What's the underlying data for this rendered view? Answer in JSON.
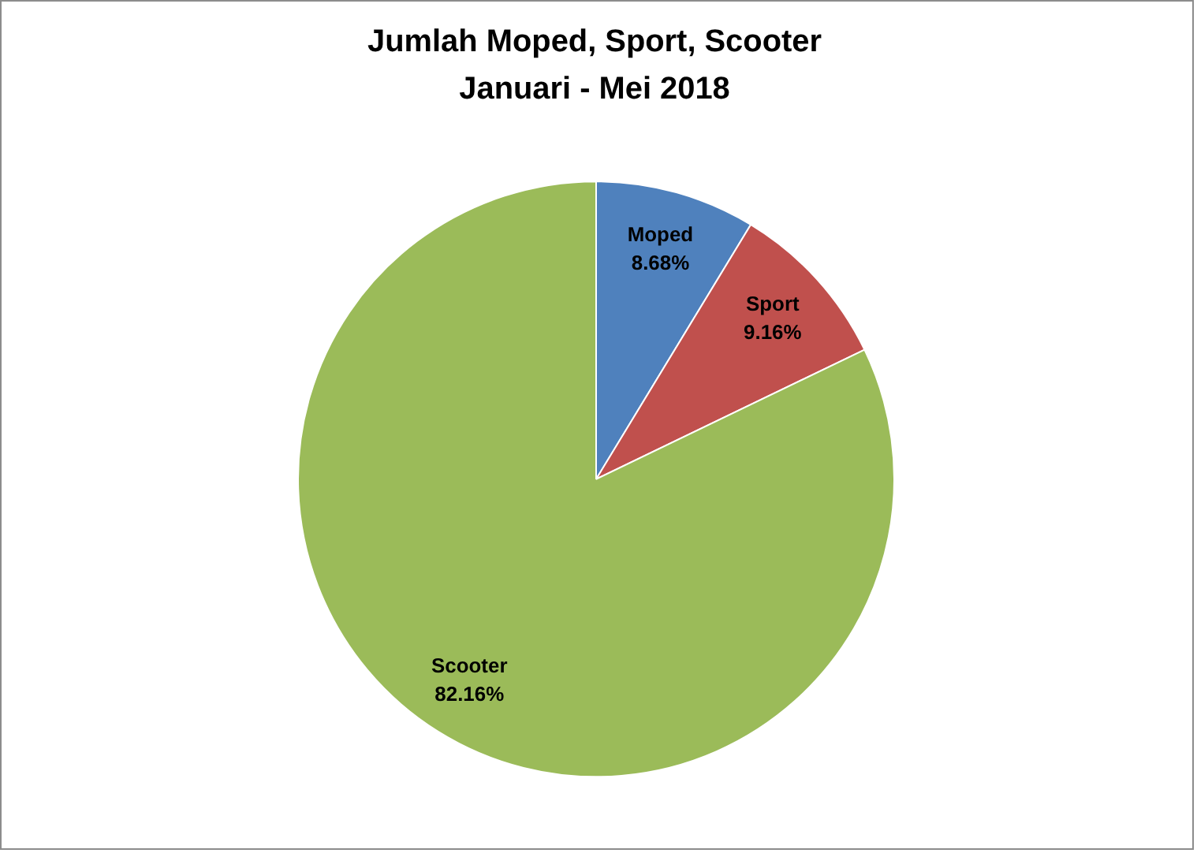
{
  "chart_data": {
    "type": "pie",
    "title": "Jumlah Moped, Sport, Scooter\nJanuari - Mei 2018",
    "categories": [
      "Moped",
      "Sport",
      "Scooter"
    ],
    "values": [
      8.68,
      9.16,
      82.16
    ],
    "colors": [
      "#4f81bd",
      "#c0504d",
      "#9bbb59"
    ],
    "value_labels": [
      "8.68%",
      "9.16%",
      "82.16%"
    ],
    "legend": false
  }
}
